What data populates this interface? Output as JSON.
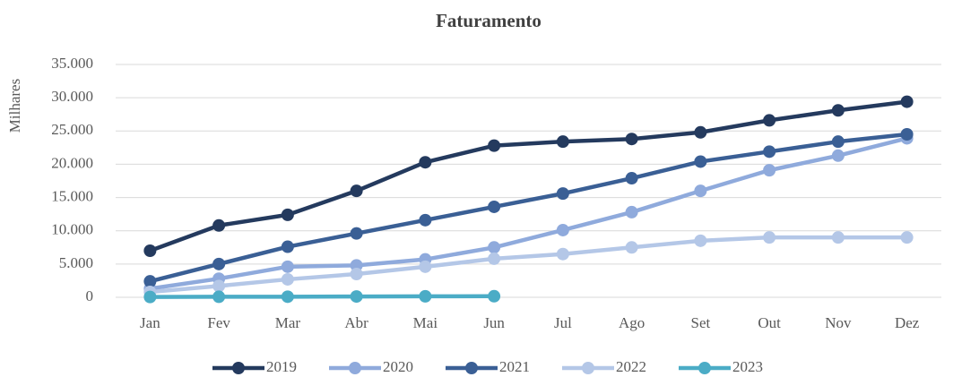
{
  "chart_data": {
    "type": "line",
    "title": "Faturamento",
    "ylabel": "Milhares",
    "categories": [
      "Jan",
      "Fev",
      "Mar",
      "Abr",
      "Mai",
      "Jun",
      "Jul",
      "Ago",
      "Set",
      "Out",
      "Nov",
      "Dez"
    ],
    "series": [
      {
        "name": "2019",
        "color": "#243a5e",
        "values": [
          7000,
          10800,
          12400,
          16000,
          20300,
          22800,
          23400,
          23800,
          24800,
          26600,
          28100,
          29400
        ]
      },
      {
        "name": "2020",
        "color": "#8faadc",
        "values": [
          1300,
          2800,
          4600,
          4800,
          5700,
          7500,
          10100,
          12800,
          16000,
          19100,
          21300,
          23900
        ]
      },
      {
        "name": "2021",
        "color": "#3a5f95",
        "values": [
          2400,
          5000,
          7600,
          9600,
          11600,
          13600,
          15600,
          17900,
          20400,
          21900,
          23400,
          24500
        ]
      },
      {
        "name": "2022",
        "color": "#b4c7e7",
        "values": [
          800,
          1700,
          2700,
          3500,
          4600,
          5800,
          6500,
          7500,
          8500,
          9000,
          9000,
          9000
        ]
      },
      {
        "name": "2023",
        "color": "#4bacc6",
        "values": [
          50,
          80,
          90,
          120,
          150,
          160,
          null,
          null,
          null,
          null,
          null,
          null
        ]
      }
    ],
    "ylim": [
      0,
      35000
    ],
    "yticks": [
      0,
      {
        "value": 5000,
        "label": "5.000"
      },
      {
        "value": 10000,
        "label": "10.000"
      },
      {
        "value": 15000,
        "label": "15.000"
      },
      {
        "value": 20000,
        "label": "20.000"
      },
      {
        "value": 25000,
        "label": "25.000"
      },
      {
        "value": 30000,
        "label": "30.000"
      },
      {
        "value": 35000,
        "label": "35.000"
      }
    ],
    "grid": true,
    "legend": "bottom"
  }
}
